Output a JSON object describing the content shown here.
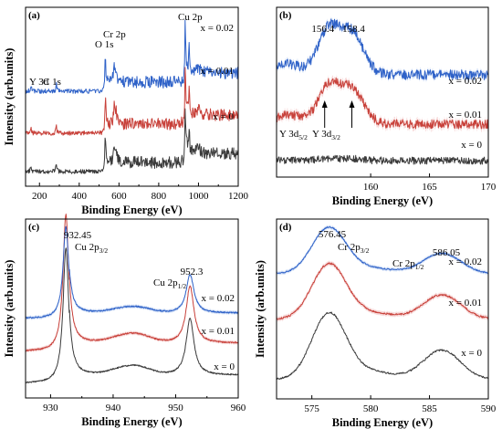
{
  "colors": {
    "x0": "#3a3a3a",
    "x001": "#c8413a",
    "x002": "#2f62c8",
    "band001": "#f2c2c2",
    "band002": "#bcd0f2"
  },
  "chart_data": [
    {
      "type": "line",
      "panel_label": "(a)",
      "xlabel": "Binding Energy (eV)",
      "ylabel": "Intensity (arb.units)",
      "xlim": [
        130,
        1200
      ],
      "xticks": [
        200,
        400,
        600,
        800,
        1000,
        1200
      ],
      "grid": false,
      "series": [
        {
          "name": "x = 0",
          "color": "#3a3a3a"
        },
        {
          "name": "x = 0.01",
          "color": "#c8413a"
        },
        {
          "name": "x = 0.02",
          "color": "#2f62c8"
        }
      ],
      "peak_labels": [
        {
          "text": "Y 3d",
          "x": 157
        },
        {
          "text": "C 1s",
          "x": 285
        },
        {
          "text": "O 1s",
          "x": 531
        },
        {
          "text": "Cr 2p",
          "x": 576
        },
        {
          "text": "Cu 2p",
          "x": 933
        }
      ]
    },
    {
      "type": "line",
      "panel_label": "(b)",
      "xlabel": "Binding Energy (eV)",
      "ylabel": "",
      "xlim": [
        152,
        170
      ],
      "xticks": [
        160,
        165,
        170
      ],
      "grid": false,
      "series": [
        {
          "name": "x = 0",
          "color": "#3a3a3a"
        },
        {
          "name": "x = 0.01",
          "color": "#c8413a"
        },
        {
          "name": "x = 0.02",
          "color": "#2f62c8"
        }
      ],
      "peak_values": [
        "156.4",
        "158.4"
      ],
      "annotations": [
        {
          "main": "Y 3d",
          "sub": "5/2",
          "x": 156.4
        },
        {
          "main": "Y 3d",
          "sub": "3/2",
          "x": 158.4
        }
      ]
    },
    {
      "type": "line",
      "panel_label": "(c)",
      "xlabel": "Binding Energy (eV)",
      "ylabel": "Intensity (arb.units)",
      "xlim": [
        926,
        960
      ],
      "xticks": [
        930,
        940,
        950,
        960
      ],
      "grid": false,
      "series": [
        {
          "name": "x = 0",
          "color": "#3a3a3a"
        },
        {
          "name": "x = 0.01",
          "color": "#c8413a"
        },
        {
          "name": "x = 0.02",
          "color": "#2f62c8"
        }
      ],
      "peak_values": [
        "932.45",
        "952.3"
      ],
      "annotations": [
        {
          "main": "Cu 2p",
          "sub": "3/2",
          "x": 932.45
        },
        {
          "main": "Cu 2p",
          "sub": "1/2",
          "x": 952.3
        }
      ]
    },
    {
      "type": "line",
      "panel_label": "(d)",
      "xlabel": "Binding Energy (eV)",
      "ylabel": "Intensity (arb.units)",
      "xlim": [
        572,
        590
      ],
      "xticks": [
        575,
        580,
        585,
        590
      ],
      "grid": false,
      "series": [
        {
          "name": "x = 0",
          "color": "#3a3a3a"
        },
        {
          "name": "x = 0.01",
          "color": "#c8413a"
        },
        {
          "name": "x = 0.02",
          "color": "#2f62c8"
        }
      ],
      "peak_values": [
        "576.45",
        "586.05"
      ],
      "annotations": [
        {
          "main": "Cr 2p",
          "sub": "3/2",
          "x": 576.45
        },
        {
          "main": "Cr 2p",
          "sub": "1/2",
          "x": 586.05
        }
      ]
    }
  ]
}
